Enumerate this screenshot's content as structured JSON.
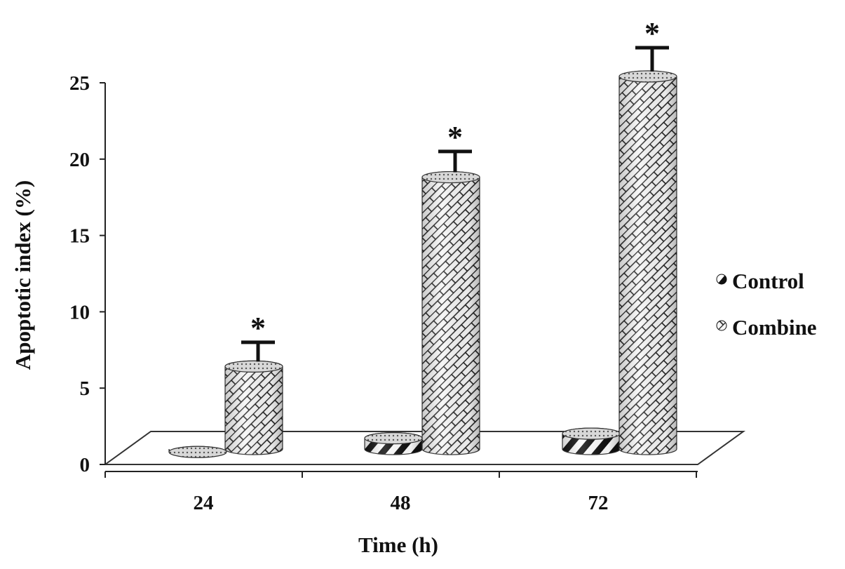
{
  "chart_data": {
    "type": "bar",
    "title": "",
    "xlabel": "Time (h)",
    "ylabel": "Apoptotic index (%)",
    "ylim": [
      0,
      25
    ],
    "yticks": [
      "0",
      "5",
      "10",
      "15",
      "20",
      "25"
    ],
    "categories": [
      "24",
      "48",
      "72"
    ],
    "series": [
      {
        "name": "Control",
        "values": [
          1.0,
          1.9,
          2.2
        ],
        "errors": [
          0,
          0,
          0
        ],
        "significance": [
          "",
          "",
          ""
        ],
        "pattern": "diagonal-stripes",
        "color": "#111111"
      },
      {
        "name": "Combine",
        "values": [
          6.6,
          19.0,
          25.6
        ],
        "errors": [
          1.4,
          1.5,
          1.7
        ],
        "significance": [
          "*",
          "*",
          "*"
        ],
        "pattern": "diagonal-brick",
        "color": "#f2f2f2"
      }
    ],
    "legend_position": "right",
    "grid": false,
    "style": "3d-cylinders-on-floor"
  }
}
